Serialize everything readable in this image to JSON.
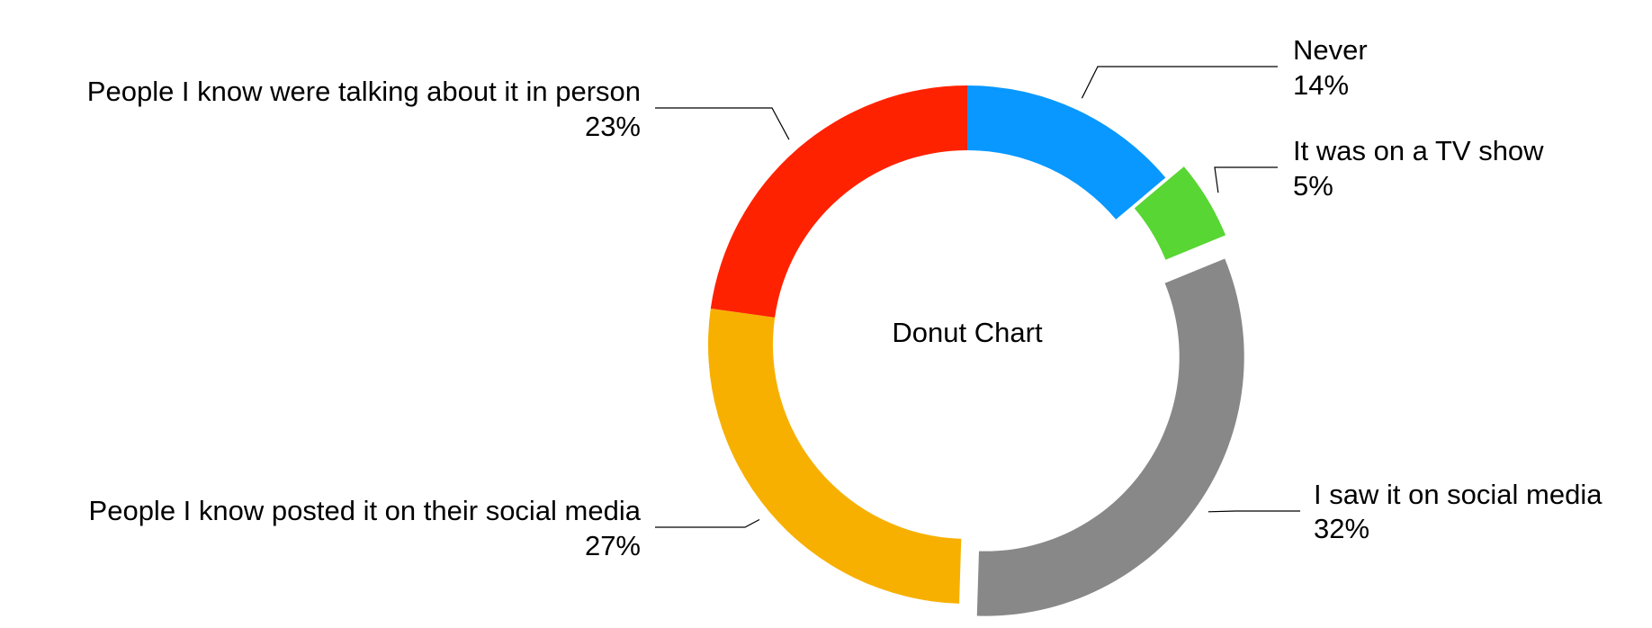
{
  "chart_data": {
    "type": "pie",
    "variant": "donut",
    "center_label": "Donut Chart",
    "slices": [
      {
        "label": "Never",
        "value_label": "14%",
        "value": 14,
        "color": "#0898FF"
      },
      {
        "label": "It was on a TV show",
        "value_label": "5%",
        "value": 5,
        "color": "#58D634",
        "exploded": true
      },
      {
        "label": "I saw it on social media",
        "value_label": "32%",
        "value": 32,
        "color": "#888888",
        "exploded": true
      },
      {
        "label": "People I know posted it on their social media",
        "value_label": "27%",
        "value": 27,
        "color": "#F7B000"
      },
      {
        "label": "People I know were talking about it in person",
        "value_label": "23%",
        "value": 23,
        "color": "#FF2200"
      }
    ]
  }
}
